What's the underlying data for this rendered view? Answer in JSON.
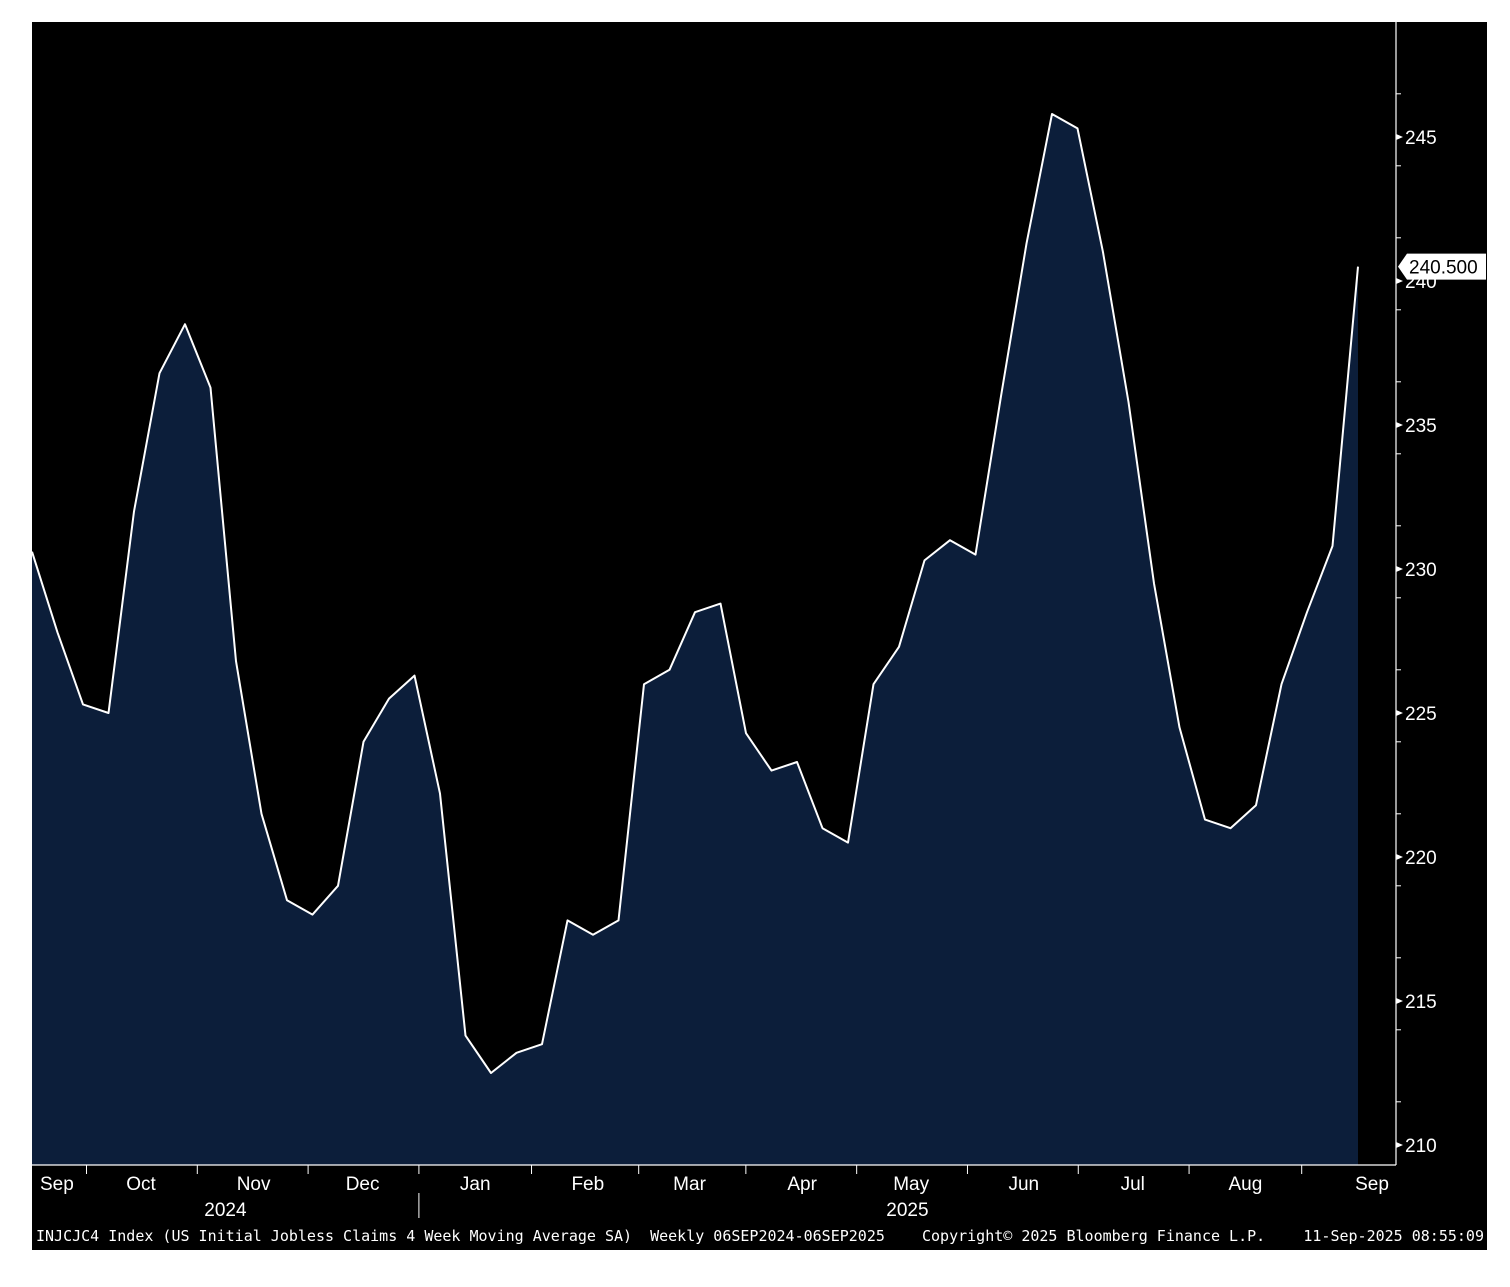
{
  "colors": {
    "plot_background": "#000000",
    "area_fill": "#0c1e3a",
    "line": "#ffffff",
    "text": "#ffffff",
    "page_background": "#ffffff",
    "last_value_label_bg": "#ffffff",
    "last_value_label_text": "#000000"
  },
  "chart_data": {
    "type": "area",
    "title": "",
    "xlabel": "",
    "ylabel": "",
    "ylim": [
      209,
      249
    ],
    "grid": false,
    "y_axis_side": "right",
    "yticks": [
      210,
      215,
      220,
      225,
      230,
      235,
      240,
      245
    ],
    "x_start": "2024-09-06",
    "x_end": "2025-09-06",
    "series": [
      {
        "values": [
          230.6,
          227.8,
          225.3,
          225.0,
          232.0,
          236.8,
          238.5,
          236.3,
          226.8,
          221.5,
          218.5,
          218.0,
          219.0,
          224.0,
          225.5,
          226.3,
          222.2,
          213.8,
          212.5,
          213.2,
          213.5,
          217.8,
          217.3,
          217.8,
          226.0,
          226.5,
          228.5,
          228.8,
          224.3,
          223.0,
          223.3,
          221.0,
          220.5,
          226.0,
          227.3,
          230.3,
          231.0,
          230.5,
          236.0,
          241.3,
          245.8,
          245.3,
          241.0,
          235.8,
          229.5,
          224.5,
          221.3,
          221.0,
          221.8,
          226.0,
          228.5,
          230.8,
          240.5
        ]
      }
    ],
    "last_value_label": "240.500",
    "x_month_labels": [
      "Sep",
      "Oct",
      "Nov",
      "Dec",
      "Jan",
      "Feb",
      "Mar",
      "Apr",
      "May",
      "Jun",
      "Jul",
      "Aug",
      "Sep"
    ],
    "x_month_dates": [
      "2024-09-06",
      "2024-10-06",
      "2024-11-06",
      "2024-12-06",
      "2025-01-06",
      "2025-02-06",
      "2025-03-06",
      "2025-04-06",
      "2025-05-06",
      "2025-06-06",
      "2025-07-06",
      "2025-08-06",
      "2025-09-06"
    ],
    "x_year_labels": [
      "2024",
      "2025"
    ]
  },
  "footer": {
    "description": "INJCJC4 Index (US Initial Jobless Claims 4 Week Moving Average SA)  Weekly 06SEP2024-06SEP2025",
    "copyright": "Copyright© 2025 Bloomberg Finance L.P.",
    "timestamp": "11-Sep-2025 08:55:09"
  }
}
